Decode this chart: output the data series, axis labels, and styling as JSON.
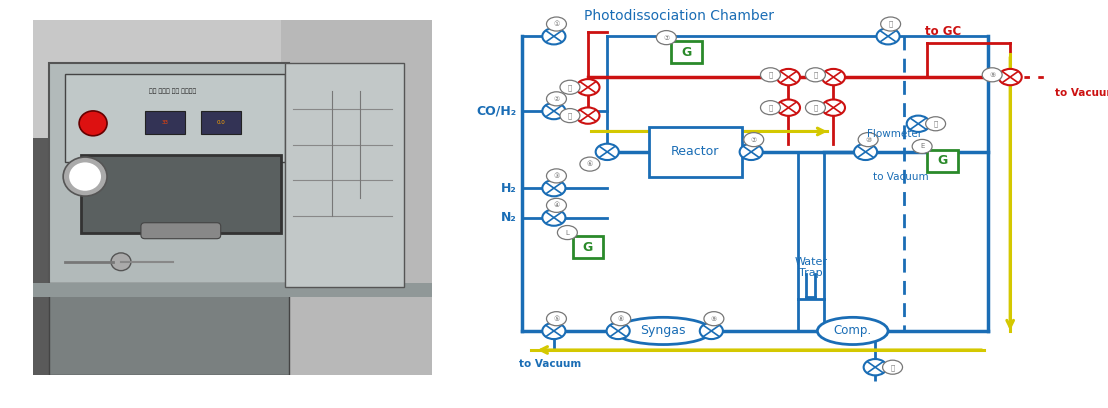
{
  "bg_color": "#ffffff",
  "diagram": {
    "title": "Photodissociation Chamber",
    "blue": "#1a6db5",
    "red": "#cc1111",
    "green": "#2a8a2a",
    "yellow": "#d4c800",
    "gray": "#777777",
    "lw_main": 2.0,
    "lw_thick": 2.5,
    "valve_r": 0.18,
    "labels": {
      "CO_H2": "CO/H₂",
      "H2": "H₂",
      "N2": "N₂",
      "to_vacuum_bl": "to Vacuum",
      "to_vacuum_r": "to Vacuum",
      "to_GC": "to GC",
      "to_vacuum_tr": "to Vacuum",
      "reactor": "Reactor",
      "water_trap": "Water\nTrap",
      "syngas": "Syngas",
      "comp": "Comp.",
      "flowmeter": "Flowmeter",
      "G": "G"
    },
    "photo_bounds": [
      0.03,
      0.08,
      0.36,
      0.87
    ],
    "diagram_bounds": [
      0.41,
      0.0,
      0.58,
      1.0
    ]
  }
}
